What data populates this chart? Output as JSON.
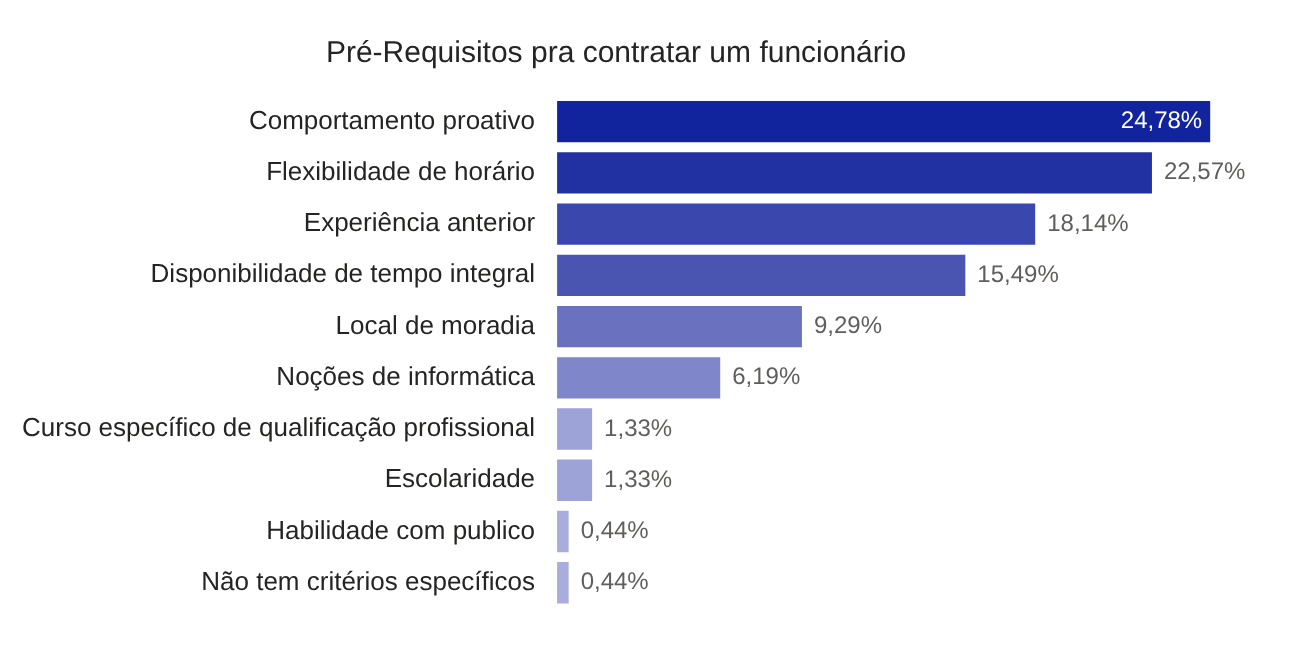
{
  "chart_data": {
    "type": "bar",
    "orientation": "horizontal",
    "title": "Pré-Requisitos pra contratar um funcionário",
    "categories": [
      "Comportamento proativo",
      "Flexibilidade de horário",
      "Experiência anterior",
      "Disponibilidade de tempo integral",
      "Local de moradia",
      "Noções de informática",
      "Curso específico de qualificação profissional",
      "Escolaridade",
      "Habilidade com publico",
      "Não tem critérios específicos"
    ],
    "values": [
      24.78,
      22.57,
      18.14,
      15.49,
      9.29,
      6.19,
      1.33,
      1.33,
      0.44,
      0.44
    ],
    "value_labels": [
      "24,78%",
      "22,57%",
      "18,14%",
      "15,49%",
      "9,29%",
      "6,19%",
      "1,33%",
      "1,33%",
      "0,44%",
      "0,44%"
    ],
    "colors": [
      "#12239e",
      "#2131a2",
      "#3a47ac",
      "#4a55b2",
      "#6a72c0",
      "#7f86c9",
      "#9ea3d7",
      "#9ea3d7",
      "#a9addb",
      "#a9addb"
    ],
    "legend": false
  }
}
